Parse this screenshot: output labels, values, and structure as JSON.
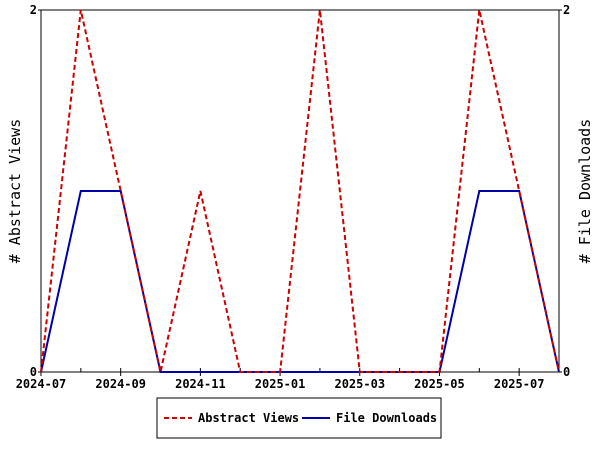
{
  "chart_data": {
    "type": "line",
    "x": [
      "2024-07",
      "2024-08",
      "2024-09",
      "2024-10",
      "2024-11",
      "2024-12",
      "2025-01",
      "2025-02",
      "2025-03",
      "2025-04",
      "2025-05",
      "2025-06",
      "2025-07",
      "2025-08"
    ],
    "x_ticks": [
      "2024-07",
      "2024-09",
      "2024-11",
      "2025-01",
      "2025-03",
      "2025-05",
      "2025-07"
    ],
    "series": [
      {
        "name": "Abstract Views",
        "color": "#cc0000",
        "dash": "dashed",
        "axis": "left",
        "values": [
          0,
          2,
          1,
          0,
          1,
          0,
          0,
          2,
          0,
          0,
          0,
          2,
          1,
          0
        ]
      },
      {
        "name": "File Downloads",
        "color": "#0000aa",
        "dash": "solid",
        "axis": "right",
        "values": [
          0,
          1,
          1,
          0,
          0,
          0,
          0,
          0,
          0,
          0,
          0,
          1,
          1,
          0
        ]
      }
    ],
    "ylabel_left": "# Abstract Views",
    "ylabel_right": "# File Downloads",
    "ylim_left": [
      0,
      2
    ],
    "ylim_right": [
      0,
      2
    ],
    "y_ticks_left": [
      "0",
      "2"
    ],
    "y_ticks_right": [
      "0",
      "2"
    ],
    "grid": false,
    "legend_position": "bottom-center"
  }
}
